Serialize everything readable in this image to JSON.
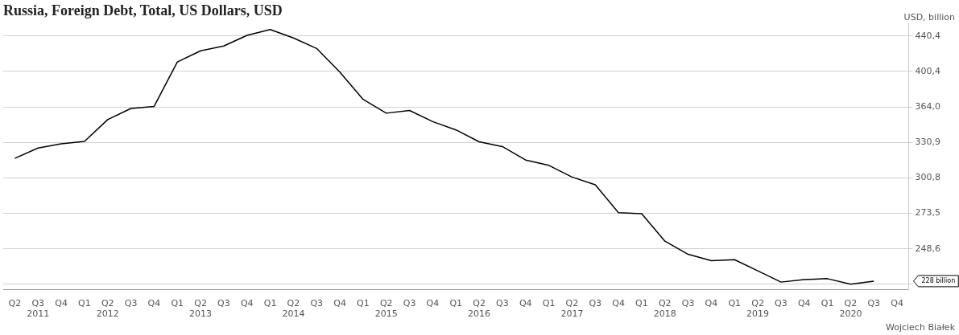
{
  "chart_data": {
    "type": "line",
    "title": "Russia, Foreign Debt, Total, US Dollars, USD",
    "ylabel": "USD, billion",
    "categories": [
      "Q2",
      "Q3\n2011",
      "Q4",
      "Q1",
      "Q2\n2012",
      "Q3",
      "Q4",
      "Q1",
      "Q2\n2013",
      "Q3",
      "Q4",
      "Q1",
      "Q2\n2014",
      "Q3",
      "Q4",
      "Q1",
      "Q2\n2015",
      "Q3",
      "Q4",
      "Q1",
      "Q2\n2016",
      "Q3",
      "Q4",
      "Q1",
      "Q2\n2017",
      "Q3",
      "Q4",
      "Q1",
      "Q2\n2018",
      "Q3",
      "Q4",
      "Q1",
      "Q2\n2019",
      "Q3",
      "Q4",
      "Q1",
      "Q2\n2020",
      "Q3",
      "Q4"
    ],
    "values": [
      317.0,
      325.9,
      329.7,
      331.8,
      351.8,
      362.5,
      364.5,
      410.6,
      423.1,
      428.7,
      441.1,
      448.1,
      438.0,
      425.8,
      399.7,
      371.4,
      357.9,
      360.5,
      349.9,
      342.2,
      331.4,
      327.2,
      315.6,
      311.1,
      301.5,
      295.3,
      274.0,
      273.3,
      253.8,
      245.0,
      240.8,
      241.5,
      234.4,
      227.4,
      228.9,
      229.5,
      226.1,
      228,
      null
    ],
    "color": "#000000",
    "log": "y",
    "ylim": [
      222.8,
      455
    ],
    "yticks": [
      {
        "value": 226.0,
        "label": null
      },
      {
        "value": 248.6,
        "label": "248,6"
      },
      {
        "value": 273.5,
        "label": "273,5"
      },
      {
        "value": 300.8,
        "label": "300,8"
      },
      {
        "value": 330.9,
        "label": "330,9"
      },
      {
        "value": 364.0,
        "label": "364,0"
      },
      {
        "value": 400.4,
        "label": "400,4"
      },
      {
        "value": 440.4,
        "label": "440,4"
      }
    ],
    "grid": "y",
    "marker": "none",
    "line_style": "solid",
    "legend": false,
    "annotations": [
      "Wojciech Białek",
      "228 billion"
    ]
  }
}
